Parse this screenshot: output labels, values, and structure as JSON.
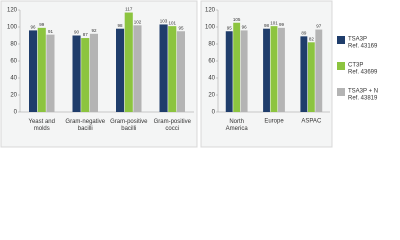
{
  "chart_data": [
    {
      "type": "bar",
      "categories": [
        "Yeast and molds",
        "Gram-negative bacilli",
        "Gram-positive bacilli",
        "Gram-positive cocci"
      ],
      "series": [
        {
          "name": "TSA3P",
          "ref": "Ref. 43169",
          "color": "#1f3d6b",
          "values": [
            96,
            90,
            98,
            103
          ]
        },
        {
          "name": "CT3P",
          "ref": "Ref. 43699",
          "color": "#8cc43f",
          "values": [
            99,
            87,
            117,
            101
          ]
        },
        {
          "name": "TSA3P + N",
          "ref": "Ref. 43819",
          "color": "#b4b4b4",
          "values": [
            91,
            92,
            102,
            95
          ]
        }
      ],
      "ylim": [
        0,
        120
      ],
      "yticks": [
        0,
        20,
        40,
        60,
        80,
        100,
        120
      ],
      "grid": false
    },
    {
      "type": "bar",
      "categories": [
        "North America",
        "Europe",
        "ASPAC"
      ],
      "series": [
        {
          "color": "#1f3d6b",
          "values": [
            95,
            98,
            89
          ]
        },
        {
          "color": "#8cc43f",
          "values": [
            105,
            101,
            82
          ]
        },
        {
          "color": "#b4b4b4",
          "values": [
            96,
            99,
            97
          ]
        }
      ],
      "ylim": [
        0,
        120
      ],
      "yticks": [
        0,
        20,
        40,
        60,
        80,
        100,
        120
      ],
      "grid": false
    }
  ]
}
